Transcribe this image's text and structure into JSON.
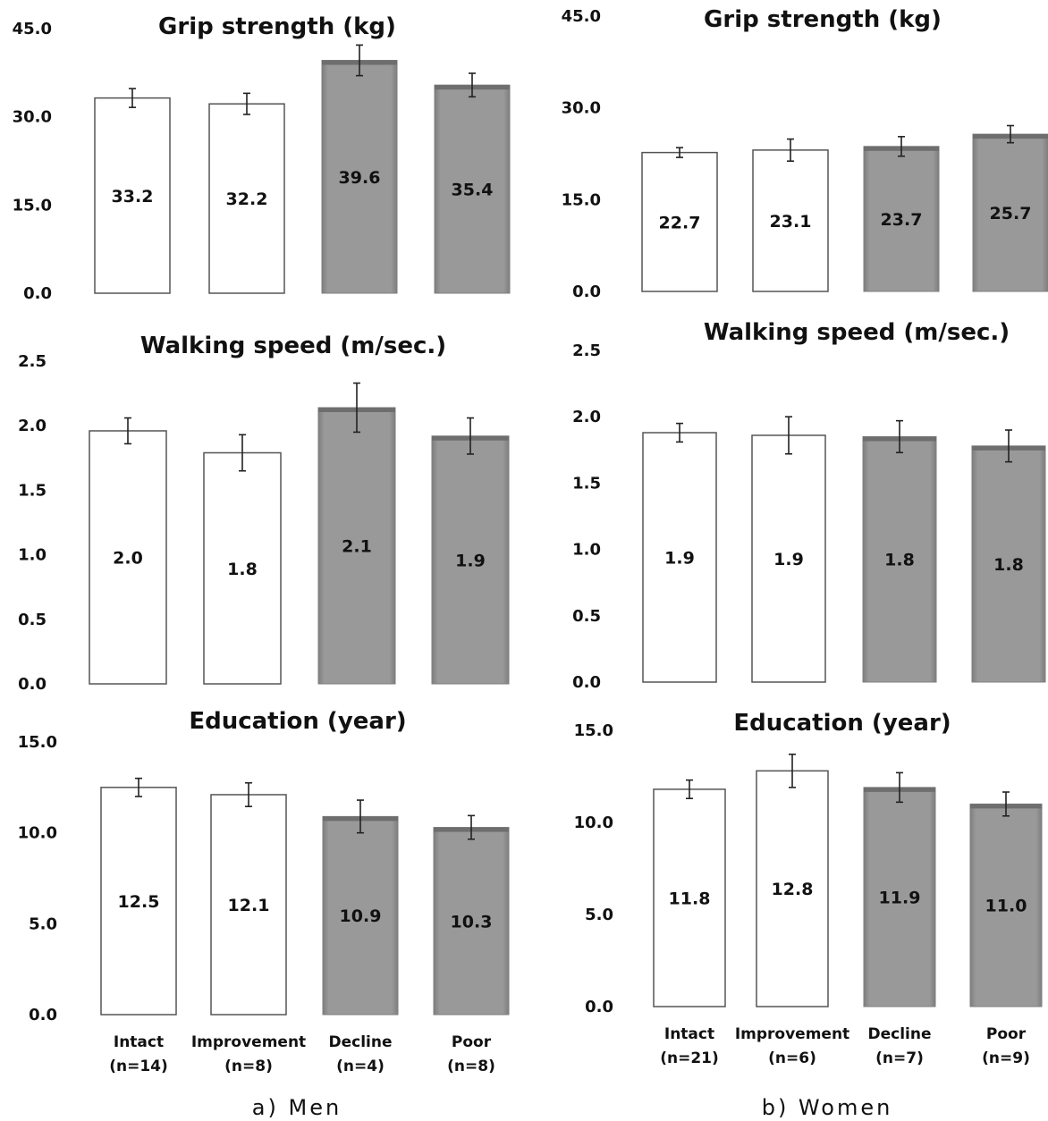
{
  "captions": {
    "men": "a) Men",
    "women": "b) Women"
  },
  "colors": {
    "unfilled": "#ffffff",
    "filled_light": "#9a9a9a",
    "filled_dark": "#7e7e7e",
    "stroke": "#555555"
  },
  "chart_data": [
    {
      "type": "bar",
      "panel": "a) Men",
      "title": "Grip strength (kg)",
      "ylim": [
        0,
        45
      ],
      "yticks": [
        "0.0",
        "15.0",
        "30.0",
        "45.0"
      ],
      "categories": [
        "Intact",
        "Improvement",
        "Decline",
        "Poor"
      ],
      "values": [
        33.2,
        32.2,
        39.6,
        35.4
      ],
      "value_labels": [
        "33.2",
        "32.2",
        "39.6",
        "35.4"
      ],
      "errors": [
        1.6,
        1.8,
        2.6,
        2.0
      ],
      "filled": [
        false,
        false,
        true,
        true
      ],
      "category_labels": []
    },
    {
      "type": "bar",
      "panel": "b) Women",
      "title": "Grip strength (kg)",
      "ylim": [
        0,
        45
      ],
      "yticks": [
        "0.0",
        "15.0",
        "30.0",
        "45.0"
      ],
      "categories": [
        "Intact",
        "Improvement",
        "Decline",
        "Poor"
      ],
      "values": [
        22.7,
        23.1,
        23.7,
        25.7
      ],
      "value_labels": [
        "22.7",
        "23.1",
        "23.7",
        "25.7"
      ],
      "errors": [
        0.8,
        1.8,
        1.6,
        1.4
      ],
      "filled": [
        false,
        false,
        true,
        true
      ],
      "category_labels": []
    },
    {
      "type": "bar",
      "panel": "a) Men",
      "title": "Walking speed (m/sec.)",
      "ylim": [
        0,
        2.5
      ],
      "yticks": [
        "0.0",
        "0.5",
        "1.0",
        "1.5",
        "2.0",
        "2.5"
      ],
      "categories": [
        "Intact",
        "Improvement",
        "Decline",
        "Poor"
      ],
      "values": [
        1.96,
        1.79,
        2.14,
        1.92
      ],
      "value_labels": [
        "2.0",
        "1.8",
        "2.1",
        "1.9"
      ],
      "errors": [
        0.1,
        0.14,
        0.19,
        0.14
      ],
      "filled": [
        false,
        false,
        true,
        true
      ],
      "category_labels": []
    },
    {
      "type": "bar",
      "panel": "b) Women",
      "title": "Walking speed (m/sec.)",
      "ylim": [
        0,
        2.5
      ],
      "yticks": [
        "0.0",
        "0.5",
        "1.0",
        "1.5",
        "2.0",
        "2.5"
      ],
      "categories": [
        "Intact",
        "Improvement",
        "Decline",
        "Poor"
      ],
      "values": [
        1.88,
        1.86,
        1.85,
        1.78
      ],
      "value_labels": [
        "1.9",
        "1.9",
        "1.8",
        "1.8"
      ],
      "errors": [
        0.07,
        0.14,
        0.12,
        0.12
      ],
      "filled": [
        false,
        false,
        true,
        true
      ],
      "category_labels": []
    },
    {
      "type": "bar",
      "panel": "a) Men",
      "title": "Education (year)",
      "ylim": [
        0,
        15
      ],
      "yticks": [
        "0.0",
        "5.0",
        "10.0",
        "15.0"
      ],
      "categories": [
        "Intact",
        "Improvement",
        "Decline",
        "Poor"
      ],
      "values": [
        12.5,
        12.1,
        10.9,
        10.3
      ],
      "value_labels": [
        "12.5",
        "12.1",
        "10.9",
        "10.3"
      ],
      "errors": [
        0.5,
        0.65,
        0.9,
        0.65
      ],
      "filled": [
        false,
        false,
        true,
        true
      ],
      "category_labels": [
        [
          "Intact",
          "(n=14)"
        ],
        [
          "Improvement",
          "(n=8)"
        ],
        [
          "Decline",
          "(n=4)"
        ],
        [
          "Poor",
          "(n=8)"
        ]
      ]
    },
    {
      "type": "bar",
      "panel": "b) Women",
      "title": "Education (year)",
      "ylim": [
        0,
        15
      ],
      "yticks": [
        "0.0",
        "5.0",
        "10.0",
        "15.0"
      ],
      "categories": [
        "Intact",
        "Improvement",
        "Decline",
        "Poor"
      ],
      "values": [
        11.8,
        12.8,
        11.9,
        11.0
      ],
      "value_labels": [
        "11.8",
        "12.8",
        "11.9",
        "11.0"
      ],
      "errors": [
        0.5,
        0.9,
        0.8,
        0.65
      ],
      "filled": [
        false,
        false,
        true,
        true
      ],
      "category_labels": [
        [
          "Intact",
          "(n=21)"
        ],
        [
          "Improvement",
          "(n=6)"
        ],
        [
          "Decline",
          "(n=7)"
        ],
        [
          "Poor",
          "(n=9)"
        ]
      ]
    }
  ]
}
